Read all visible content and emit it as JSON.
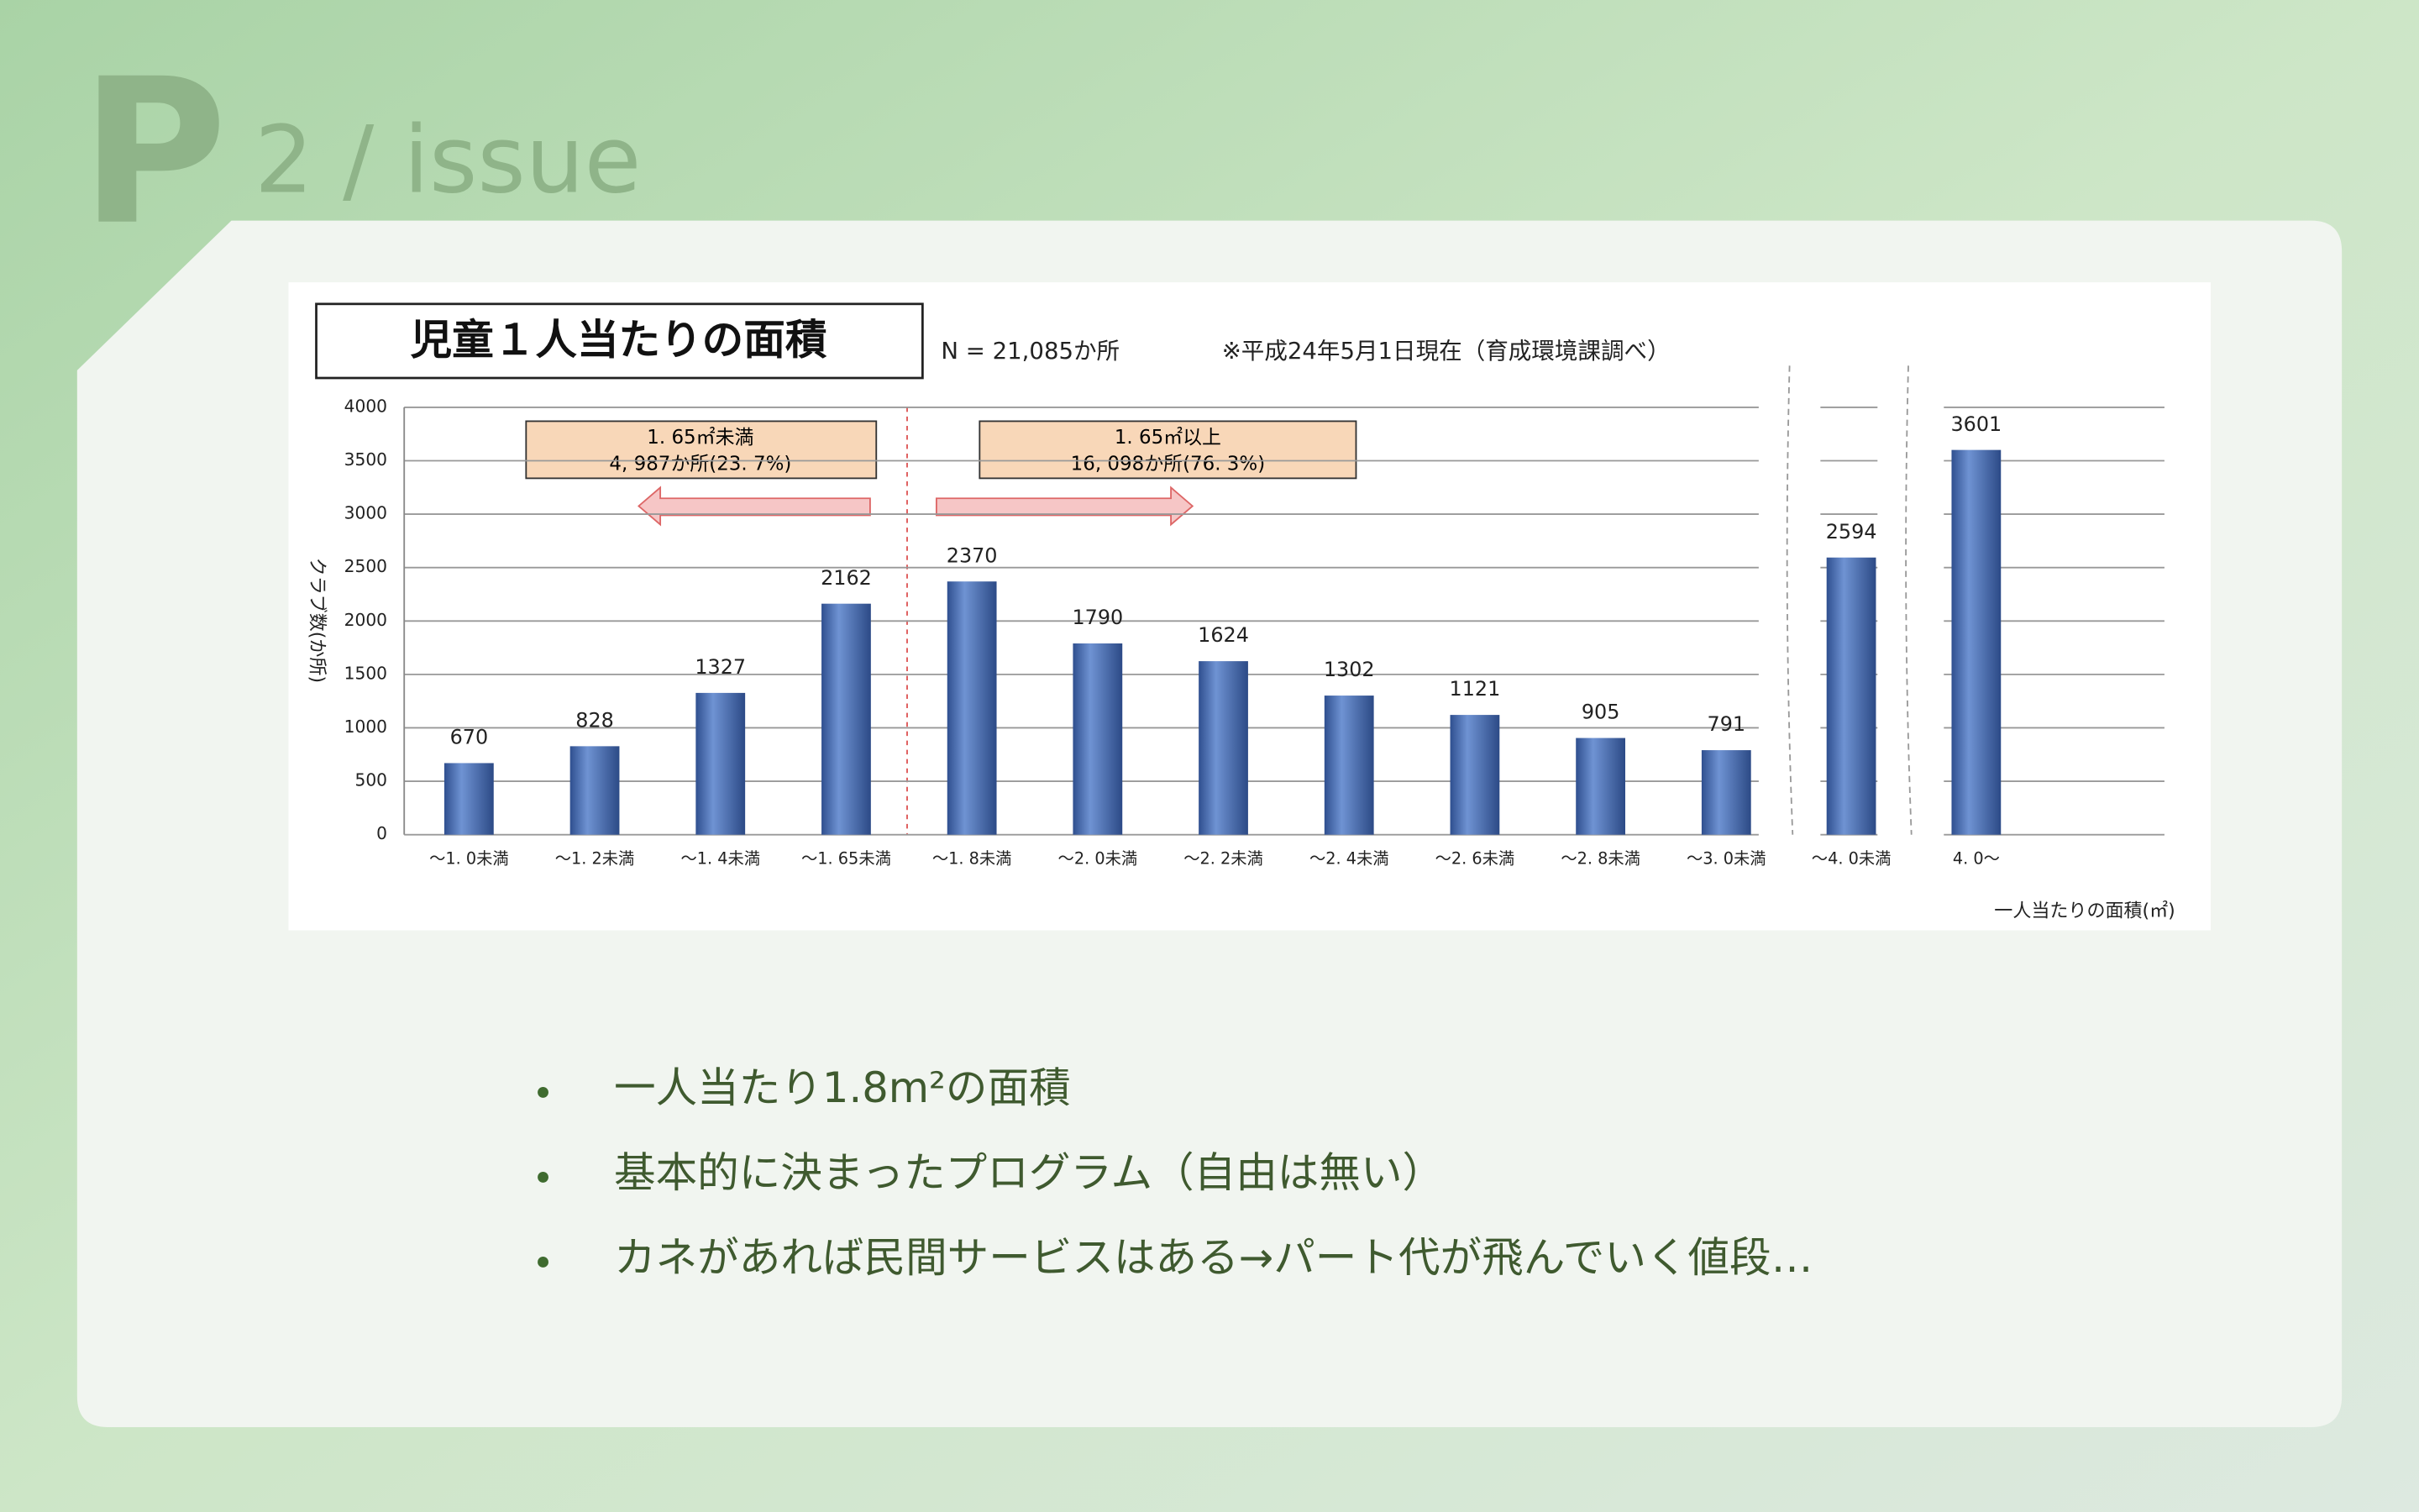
{
  "header": {
    "logo": "P",
    "title": "2 / issue"
  },
  "chart_data": {
    "type": "bar",
    "title": "児童１人当たりの面積",
    "subtitle": "N = 21,085か所",
    "note": "※平成24年5月1日現在（育成環境課調べ）",
    "categories": [
      "～1. 0未満",
      "～1. 2未満",
      "～1. 4未満",
      "～1. 65未満",
      "～1. 8未満",
      "～2. 0未満",
      "～2. 2未満",
      "～2. 4未満",
      "～2. 6未満",
      "～2. 8未満",
      "～3. 0未満",
      "～4. 0未満",
      "4. 0～"
    ],
    "values": [
      670,
      828,
      1327,
      2162,
      2370,
      1790,
      1624,
      1302,
      1121,
      905,
      791,
      2594,
      3601
    ],
    "color": "#4f74b8",
    "ylim": [
      0,
      4000
    ],
    "yticks": [
      0,
      500,
      1000,
      1500,
      2000,
      2500,
      3000,
      3500,
      4000
    ],
    "grid": true,
    "ylabel": "クラブ数(か所)",
    "xlabel": "一人当たりの面積(㎡)",
    "annotations": [
      {
        "line1": "1. 65㎡未満",
        "line2": "4, 987か所(23. 7%)"
      },
      {
        "line1": "1. 65㎡以上",
        "line2": "16, 098か所(76. 3%)"
      }
    ]
  },
  "bullets": [
    "一人当たり1.8m²の面積",
    "基本的に決まったプログラム（自由は無い）",
    "カネがあれば民間サービスはある→パート代が飛んでいく値段…"
  ]
}
